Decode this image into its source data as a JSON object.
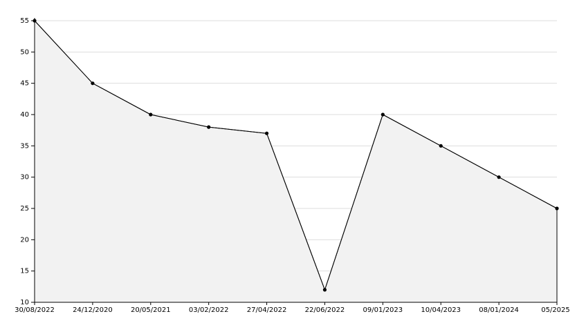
{
  "chart_data": {
    "type": "area",
    "categories": [
      "30/08/2022",
      "24/12/2020",
      "20/05/2021",
      "03/02/2022",
      "27/04/2022",
      "22/06/2022",
      "09/01/2023",
      "10/04/2023",
      "08/01/2024",
      "05/2025"
    ],
    "values": [
      55,
      45,
      40,
      38,
      37,
      12,
      40,
      35,
      30,
      25
    ],
    "color": "#000000",
    "fill": "#f2f2f2",
    "ylim": [
      10,
      55
    ],
    "yticks": [
      10,
      15,
      20,
      25,
      30,
      35,
      40,
      45,
      50,
      55
    ],
    "grid": true
  }
}
